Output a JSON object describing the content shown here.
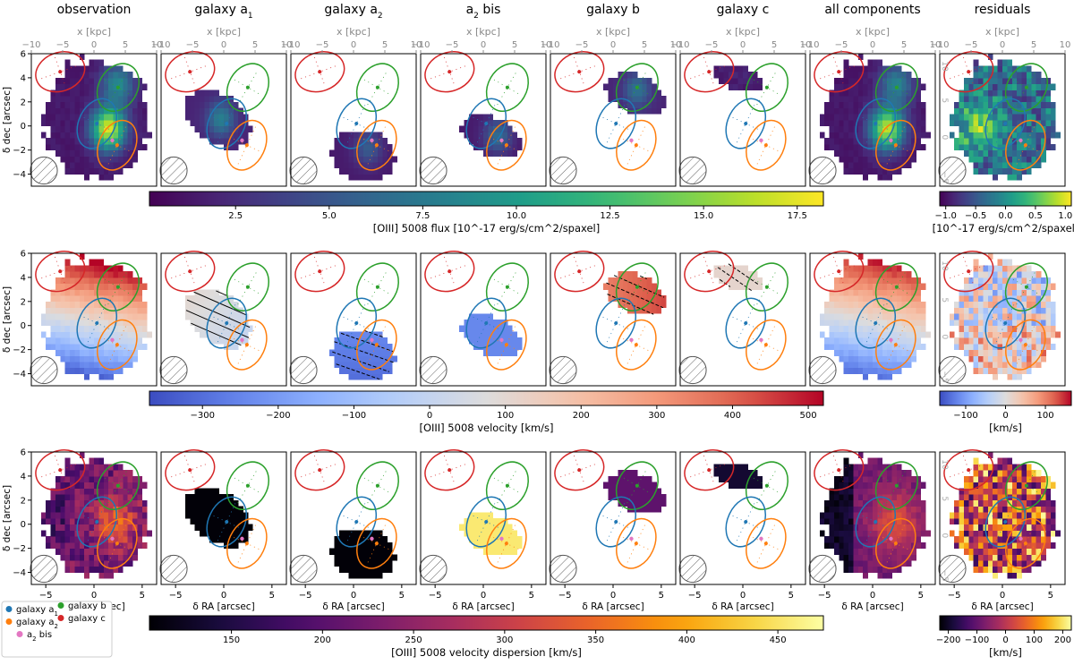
{
  "chart_data": {
    "type": "heatmap",
    "column_titles": [
      "observation",
      "galaxy a",
      "galaxy a",
      "a",
      "galaxy b",
      "galaxy c",
      "all components",
      "residuals"
    ],
    "column_subscripts": [
      "",
      "1",
      "2",
      "2",
      "",
      "",
      "",
      ""
    ],
    "column_title_suffix": [
      "",
      "",
      "",
      " bis",
      "",
      "",
      "",
      ""
    ],
    "top_axis_label": "x [kpc]",
    "top_axis_ticks": [
      -10,
      -5,
      0,
      5,
      10
    ],
    "y_axis_label": "δ dec [arcsec]",
    "y_axis_ticks": [
      -4,
      -2,
      0,
      2,
      4,
      6
    ],
    "x_axis_label": "δ RA [arcsec]",
    "x_axis_ticks": [
      -5,
      0,
      5
    ],
    "right_axis_ticks": [
      -5,
      0,
      5,
      10
    ],
    "rows": [
      {
        "quantity": "flux",
        "colorbar_main": {
          "label": "[OIII] 5008 flux [10^-17 erg/s/cm^2/spaxel]",
          "ticks": [
            "2.5",
            "5.0",
            "7.5",
            "10.0",
            "12.5",
            "15.0",
            "17.5"
          ],
          "range": [
            0.2,
            18.2
          ],
          "colormap": "viridis"
        },
        "colorbar_resid": {
          "label": "[10^-17 erg/s/cm^2/spaxel]",
          "ticks": [
            "−1.0",
            "−0.5",
            "0.0",
            "0.5",
            "1.0"
          ],
          "range": [
            -1.1,
            1.1
          ],
          "colormap": "viridis"
        }
      },
      {
        "quantity": "velocity",
        "colorbar_main": {
          "label": "[OIII] 5008 velocity [km/s]",
          "ticks": [
            "−300",
            "−200",
            "−100",
            "0",
            "100",
            "200",
            "300",
            "400",
            "500"
          ],
          "range": [
            -370,
            520
          ],
          "colormap": "coolwarm"
        },
        "colorbar_resid": {
          "label": "[km/s]",
          "ticks": [
            "−100",
            "0",
            "100"
          ],
          "range": [
            -165,
            165
          ],
          "colormap": "coolwarm"
        }
      },
      {
        "quantity": "velocity dispersion",
        "colorbar_main": {
          "label": "[OIII] 5008 velocity dispersion [km/s]",
          "ticks": [
            "150",
            "200",
            "250",
            "300",
            "350",
            "400",
            "450"
          ],
          "range": [
            105,
            475
          ],
          "colormap": "inferno"
        },
        "colorbar_resid": {
          "label": "[km/s]",
          "ticks": [
            "−200",
            "−100",
            "0",
            "100",
            "200"
          ],
          "range": [
            -230,
            230
          ],
          "colormap": "inferno"
        }
      }
    ],
    "legend": {
      "placement": "bottom-left",
      "entries": [
        {
          "name": "galaxy a",
          "sub": "1",
          "suffix": "",
          "color": "#1f77b4"
        },
        {
          "name": "galaxy a",
          "sub": "2",
          "suffix": "",
          "color": "#ff7f0e"
        },
        {
          "name": "a",
          "sub": "2",
          "suffix": " bis",
          "color": "#e377c2"
        },
        {
          "name": "galaxy b",
          "sub": "",
          "suffix": "",
          "color": "#2ca02c"
        },
        {
          "name": "galaxy c",
          "sub": "",
          "suffix": "",
          "color": "#d62728"
        }
      ]
    },
    "component_ellipses": [
      {
        "name": "galaxy c",
        "color": "#d62728",
        "center": [
          -3.5,
          4.5
        ],
        "semi_axes": [
          2.6,
          1.6
        ],
        "angle": -20
      },
      {
        "name": "galaxy b",
        "color": "#2ca02c",
        "center": [
          2.5,
          3.2
        ],
        "semi_axes": [
          2.6,
          1.6
        ],
        "angle": -60
      },
      {
        "name": "galaxy a1",
        "color": "#1f77b4",
        "center": [
          0.3,
          0.2
        ],
        "semi_axes": [
          2.7,
          1.5
        ],
        "angle": -65
      },
      {
        "name": "galaxy a2",
        "color": "#ff7f0e",
        "center": [
          2.4,
          -1.6
        ],
        "semi_axes": [
          2.7,
          1.5
        ],
        "angle": -65
      }
    ],
    "beam": {
      "center": [
        -5.2,
        -3.7
      ],
      "radius": 1.4
    },
    "xlim": [
      -6.5,
      6.5
    ],
    "ylim": [
      -5,
      6
    ],
    "panels": [
      [
        {
          "kind": "obs",
          "q": "flux"
        },
        {
          "kind": "a1",
          "q": "flux"
        },
        {
          "kind": "a2",
          "q": "flux"
        },
        {
          "kind": "bis",
          "q": "flux"
        },
        {
          "kind": "b",
          "q": "flux"
        },
        {
          "kind": "c",
          "q": "flux"
        },
        {
          "kind": "all",
          "q": "flux"
        },
        {
          "kind": "resid",
          "q": "flux"
        }
      ],
      [
        {
          "kind": "obs",
          "q": "vel"
        },
        {
          "kind": "a1",
          "q": "vel"
        },
        {
          "kind": "a2",
          "q": "vel"
        },
        {
          "kind": "bis",
          "q": "vel"
        },
        {
          "kind": "b",
          "q": "vel"
        },
        {
          "kind": "c",
          "q": "vel"
        },
        {
          "kind": "all",
          "q": "vel"
        },
        {
          "kind": "resid",
          "q": "vel"
        }
      ],
      [
        {
          "kind": "obs",
          "q": "disp"
        },
        {
          "kind": "a1",
          "q": "disp"
        },
        {
          "kind": "a2",
          "q": "disp"
        },
        {
          "kind": "bis",
          "q": "disp"
        },
        {
          "kind": "b",
          "q": "disp"
        },
        {
          "kind": "c",
          "q": "disp"
        },
        {
          "kind": "all",
          "q": "disp"
        },
        {
          "kind": "resid",
          "q": "disp"
        }
      ]
    ]
  }
}
